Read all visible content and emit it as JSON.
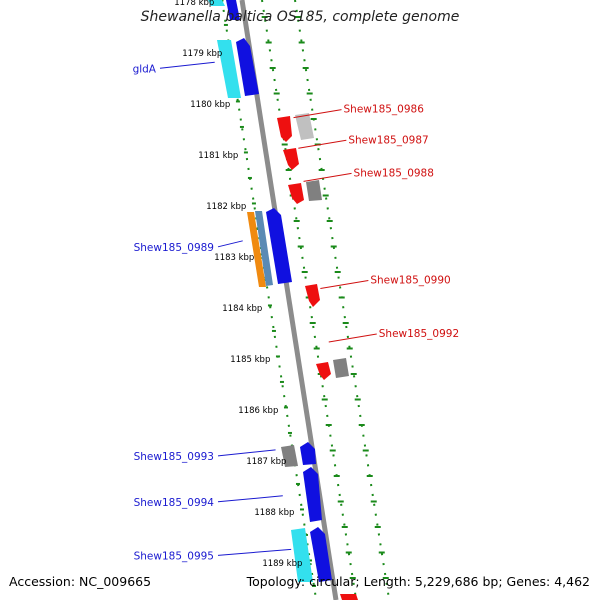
{
  "title": "Shewanella baltica OS185, complete genome",
  "accession": "Accession: NC_009665",
  "topology": "Topology: circular; Length: 5,229,686 bp; Genes: 4,462",
  "colors": {
    "backbone": "#888888",
    "tick_green": "#1a8a1a",
    "blue_gene": "#1010e0",
    "cyan_gene": "#33e0ee",
    "red_gene": "#ee1010",
    "gray_gene": "#808080",
    "light_gray_gene": "#c0c0c0",
    "orange_gene": "#f08a10",
    "steel_gene": "#5a8ab4",
    "label_blue": "#1a1ad0",
    "label_red": "#d01010"
  },
  "kbp_labels": [
    {
      "label": "1178 kbp",
      "kbp": 1178
    },
    {
      "label": "1179 kbp",
      "kbp": 1179
    },
    {
      "label": "1180 kbp",
      "kbp": 1180
    },
    {
      "label": "1181 kbp",
      "kbp": 1181
    },
    {
      "label": "1182 kbp",
      "kbp": 1182
    },
    {
      "label": "1183 kbp",
      "kbp": 1183
    },
    {
      "label": "1184 kbp",
      "kbp": 1184
    },
    {
      "label": "1185 kbp",
      "kbp": 1185
    },
    {
      "label": "1186 kbp",
      "kbp": 1186
    },
    {
      "label": "1187 kbp",
      "kbp": 1187
    },
    {
      "label": "1188 kbp",
      "kbp": 1188
    },
    {
      "label": "1189 kbp",
      "kbp": 1189
    }
  ],
  "gene_labels_left": [
    {
      "label": "gldA",
      "kbp": 1179.3
    },
    {
      "label": "Shew185_0989",
      "kbp": 1182.8
    },
    {
      "label": "Shew185_0993",
      "kbp": 1186.9
    },
    {
      "label": "Shew185_0994",
      "kbp": 1187.8
    },
    {
      "label": "Shew185_0995",
      "kbp": 1188.85
    }
  ],
  "gene_labels_right": [
    {
      "label": "Shew185_0986",
      "kbp": 1180.15
    },
    {
      "label": "Shew185_0987",
      "kbp": 1180.75
    },
    {
      "label": "Shew185_0988",
      "kbp": 1181.4
    },
    {
      "label": "Shew185_0990",
      "kbp": 1183.5
    },
    {
      "label": "Shew185_0992",
      "kbp": 1184.55
    }
  ]
}
